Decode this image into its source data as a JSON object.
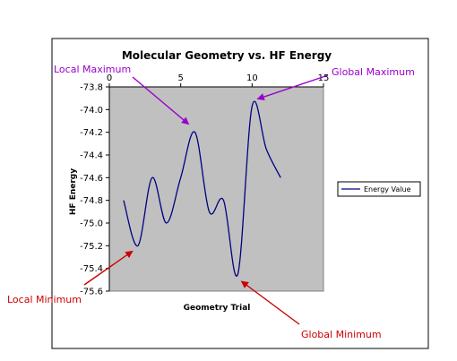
{
  "chart_data": {
    "type": "line",
    "title": "Molecular Geometry vs. HF Energy",
    "xlabel": "Geometry Trial",
    "ylabel": "HF Energy",
    "xlim": [
      0,
      15
    ],
    "ylim": [
      -75.6,
      -73.8
    ],
    "x_ticks": [
      0,
      5,
      10,
      15
    ],
    "x_tick_labels": [
      "0",
      "5",
      "10",
      "15"
    ],
    "y_ticks": [
      -73.8,
      -74.0,
      -74.2,
      -74.4,
      -74.6,
      -74.8,
      -75.0,
      -75.2,
      -75.4,
      -75.6
    ],
    "y_tick_labels": [
      "-73.8",
      "-74.0",
      "-74.2",
      "-74.4",
      "-74.6",
      "-74.8",
      "-75.0",
      "-75.2",
      "-75.4",
      "-75.6"
    ],
    "x_axis_position": "top",
    "grid": false,
    "legend_position": "right",
    "series": [
      {
        "name": "Energy Value",
        "color": "#000080",
        "x": [
          1,
          2,
          3,
          4,
          5,
          6,
          7,
          8,
          9,
          10,
          11,
          12
        ],
        "y": [
          -74.8,
          -75.2,
          -74.6,
          -75.0,
          -74.6,
          -74.2,
          -74.9,
          -74.8,
          -75.45,
          -73.97,
          -74.35,
          -74.6
        ]
      }
    ],
    "annotations": [
      {
        "text": "Local Maximum",
        "color": "#9900cc",
        "points_to": {
          "x": 6,
          "y": -74.2
        }
      },
      {
        "text": "Global Maximum",
        "color": "#9900cc",
        "points_to": {
          "x": 10,
          "y": -73.97
        }
      },
      {
        "text": "Local Minimum",
        "color": "#cc0000",
        "points_to": {
          "x": 2,
          "y": -75.2
        }
      },
      {
        "text": "Global Minimum",
        "color": "#cc0000",
        "points_to": {
          "x": 9,
          "y": -75.45
        }
      }
    ],
    "plot_background": "#c0c0c0"
  }
}
